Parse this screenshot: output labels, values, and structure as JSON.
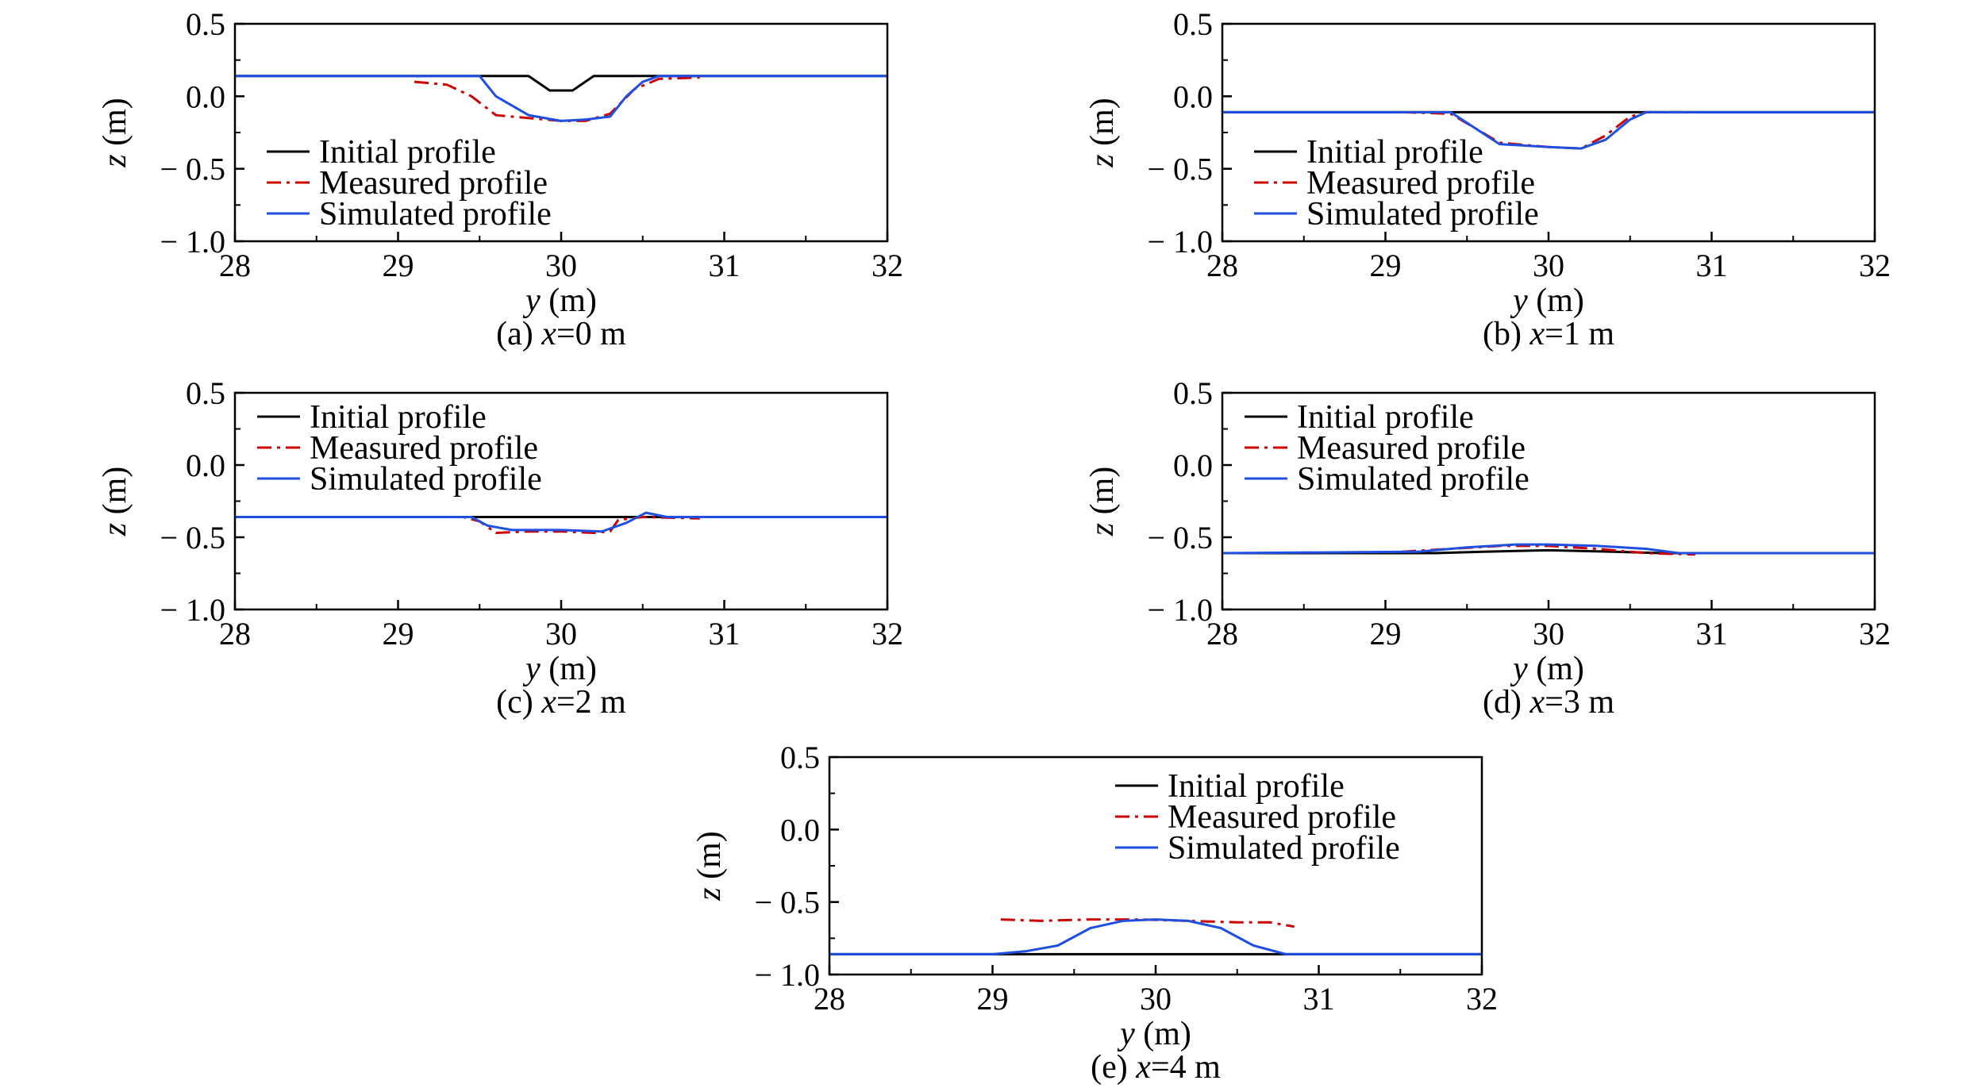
{
  "colors": {
    "initial": "#000000",
    "measured": "#cc0000",
    "simulated": "#1f4fe0"
  },
  "chart_data": [
    {
      "type": "line",
      "caption": {
        "prefix": "(a) ",
        "var": "x",
        "suffix": "=0 m"
      },
      "xlabel": {
        "var": "y",
        "unit": " (m)"
      },
      "ylabel": {
        "var": "z",
        "unit": " (m)"
      },
      "xlim": [
        28,
        32
      ],
      "ylim": [
        -1.0,
        0.5
      ],
      "xticks": [
        "28",
        "29",
        "30",
        "31",
        "32"
      ],
      "yticks": [
        "0.5",
        "0.0",
        "− 0.5",
        "− 1.0"
      ],
      "grid": false,
      "legend_position": "bottom-left",
      "series": [
        {
          "name": "Initial profile",
          "style": "solid",
          "color": "#000000",
          "x": [
            28,
            29.8,
            29.93,
            30.07,
            30.2,
            32
          ],
          "y": [
            0.14,
            0.14,
            0.04,
            0.04,
            0.14,
            0.14
          ]
        },
        {
          "name": "Measured profile",
          "style": "dashdot",
          "color": "#cc0000",
          "x": [
            29.1,
            29.3,
            29.45,
            29.6,
            29.8,
            30.0,
            30.15,
            30.3,
            30.45,
            30.6,
            30.85
          ],
          "y": [
            0.1,
            0.08,
            0.0,
            -0.13,
            -0.15,
            -0.17,
            -0.17,
            -0.12,
            0.05,
            0.12,
            0.13
          ]
        },
        {
          "name": "Simulated profile",
          "style": "solid",
          "color": "#1f4fe0",
          "x": [
            28,
            29.5,
            29.6,
            29.8,
            30.0,
            30.15,
            30.3,
            30.4,
            30.5,
            30.6,
            32
          ],
          "y": [
            0.14,
            0.14,
            0.0,
            -0.13,
            -0.17,
            -0.16,
            -0.14,
            0.0,
            0.1,
            0.14,
            0.14
          ]
        }
      ]
    },
    {
      "type": "line",
      "caption": {
        "prefix": "(b) ",
        "var": "x",
        "suffix": "=1 m"
      },
      "xlabel": {
        "var": "y",
        "unit": " (m)"
      },
      "ylabel": {
        "var": "z",
        "unit": " (m)"
      },
      "xlim": [
        28,
        32
      ],
      "ylim": [
        -1.0,
        0.5
      ],
      "xticks": [
        "28",
        "29",
        "30",
        "31",
        "32"
      ],
      "yticks": [
        "0.5",
        "0.0",
        "− 0.5",
        "− 1.0"
      ],
      "grid": false,
      "legend_position": "bottom-left",
      "series": [
        {
          "name": "Initial profile",
          "style": "solid",
          "color": "#000000",
          "x": [
            28,
            32
          ],
          "y": [
            -0.11,
            -0.11
          ]
        },
        {
          "name": "Measured profile",
          "style": "dashdot",
          "color": "#cc0000",
          "x": [
            29.1,
            29.4,
            29.55,
            29.7,
            30.0,
            30.2,
            30.35,
            30.5,
            30.6,
            30.9
          ],
          "y": [
            -0.11,
            -0.12,
            -0.22,
            -0.32,
            -0.35,
            -0.36,
            -0.27,
            -0.14,
            -0.11,
            -0.11
          ]
        },
        {
          "name": "Simulated profile",
          "style": "solid",
          "color": "#1f4fe0",
          "x": [
            28,
            29.4,
            29.55,
            29.7,
            30.0,
            30.2,
            30.35,
            30.5,
            30.6,
            32
          ],
          "y": [
            -0.11,
            -0.11,
            -0.22,
            -0.33,
            -0.35,
            -0.36,
            -0.3,
            -0.16,
            -0.11,
            -0.11
          ]
        }
      ]
    },
    {
      "type": "line",
      "caption": {
        "prefix": "(c) ",
        "var": "x",
        "suffix": "=2 m"
      },
      "xlabel": {
        "var": "y",
        "unit": " (m)"
      },
      "ylabel": {
        "var": "z",
        "unit": " (m)"
      },
      "xlim": [
        28,
        32
      ],
      "ylim": [
        -1.0,
        0.5
      ],
      "xticks": [
        "28",
        "29",
        "30",
        "31",
        "32"
      ],
      "yticks": [
        "0.5",
        "0.0",
        "− 0.5",
        "− 1.0"
      ],
      "grid": false,
      "legend_position": "top-left",
      "series": [
        {
          "name": "Initial profile",
          "style": "solid",
          "color": "#000000",
          "x": [
            28,
            32
          ],
          "y": [
            -0.36,
            -0.36
          ]
        },
        {
          "name": "Measured profile",
          "style": "dashdot",
          "color": "#cc0000",
          "x": [
            29.1,
            29.4,
            29.5,
            29.6,
            29.8,
            30.0,
            30.2,
            30.3,
            30.35,
            30.5,
            30.85
          ],
          "y": [
            -0.36,
            -0.36,
            -0.39,
            -0.47,
            -0.46,
            -0.46,
            -0.47,
            -0.46,
            -0.38,
            -0.36,
            -0.37
          ]
        },
        {
          "name": "Simulated profile",
          "style": "solid",
          "color": "#1f4fe0",
          "x": [
            28,
            29.45,
            29.55,
            29.7,
            30.0,
            30.25,
            30.4,
            30.52,
            30.65,
            32
          ],
          "y": [
            -0.36,
            -0.36,
            -0.42,
            -0.45,
            -0.45,
            -0.46,
            -0.4,
            -0.33,
            -0.36,
            -0.36
          ]
        }
      ]
    },
    {
      "type": "line",
      "caption": {
        "prefix": "(d) ",
        "var": "x",
        "suffix": "=3 m"
      },
      "xlabel": {
        "var": "y",
        "unit": " (m)"
      },
      "ylabel": {
        "var": "z",
        "unit": " (m)"
      },
      "xlim": [
        28,
        32
      ],
      "ylim": [
        -1.0,
        0.5
      ],
      "xticks": [
        "28",
        "29",
        "30",
        "31",
        "32"
      ],
      "yticks": [
        "0.5",
        "0.0",
        "− 0.5",
        "− 1.0"
      ],
      "grid": false,
      "legend_position": "top-left",
      "series": [
        {
          "name": "Initial profile",
          "style": "solid",
          "color": "#000000",
          "x": [
            28,
            29.3,
            29.6,
            30.0,
            30.4,
            30.7,
            32
          ],
          "y": [
            -0.61,
            -0.61,
            -0.6,
            -0.59,
            -0.6,
            -0.61,
            -0.61
          ]
        },
        {
          "name": "Measured profile",
          "style": "dashdot",
          "color": "#cc0000",
          "x": [
            29.1,
            29.4,
            29.7,
            30.0,
            30.3,
            30.6,
            30.9
          ],
          "y": [
            -0.6,
            -0.58,
            -0.56,
            -0.56,
            -0.58,
            -0.61,
            -0.62
          ]
        },
        {
          "name": "Simulated profile",
          "style": "solid",
          "color": "#1f4fe0",
          "x": [
            28,
            29.2,
            29.5,
            29.8,
            30.0,
            30.3,
            30.6,
            30.8,
            32
          ],
          "y": [
            -0.61,
            -0.6,
            -0.57,
            -0.55,
            -0.55,
            -0.56,
            -0.58,
            -0.61,
            -0.61
          ]
        }
      ]
    },
    {
      "type": "line",
      "caption": {
        "prefix": "(e) ",
        "var": "x",
        "suffix": "=4 m"
      },
      "xlabel": {
        "var": "y",
        "unit": " (m)"
      },
      "ylabel": {
        "var": "z",
        "unit": " (m)"
      },
      "xlim": [
        28,
        32
      ],
      "ylim": [
        -1.0,
        0.5
      ],
      "xticks": [
        "28",
        "29",
        "30",
        "31",
        "32"
      ],
      "yticks": [
        "0.5",
        "0.0",
        "− 0.5",
        "− 1.0"
      ],
      "grid": false,
      "legend_position": "top-right",
      "series": [
        {
          "name": "Initial profile",
          "style": "solid",
          "color": "#000000",
          "x": [
            28,
            32
          ],
          "y": [
            -0.86,
            -0.86
          ]
        },
        {
          "name": "Measured profile",
          "style": "dashdot",
          "color": "#cc0000",
          "x": [
            29.05,
            29.3,
            29.6,
            29.9,
            30.2,
            30.5,
            30.7,
            30.85
          ],
          "y": [
            -0.62,
            -0.63,
            -0.62,
            -0.62,
            -0.63,
            -0.64,
            -0.64,
            -0.67
          ]
        },
        {
          "name": "Simulated profile",
          "style": "solid",
          "color": "#1f4fe0",
          "x": [
            28,
            29.0,
            29.2,
            29.4,
            29.6,
            29.8,
            30.0,
            30.2,
            30.4,
            30.6,
            30.8,
            32
          ],
          "y": [
            -0.86,
            -0.86,
            -0.84,
            -0.8,
            -0.68,
            -0.63,
            -0.62,
            -0.63,
            -0.68,
            -0.8,
            -0.86,
            -0.86
          ]
        }
      ]
    }
  ]
}
